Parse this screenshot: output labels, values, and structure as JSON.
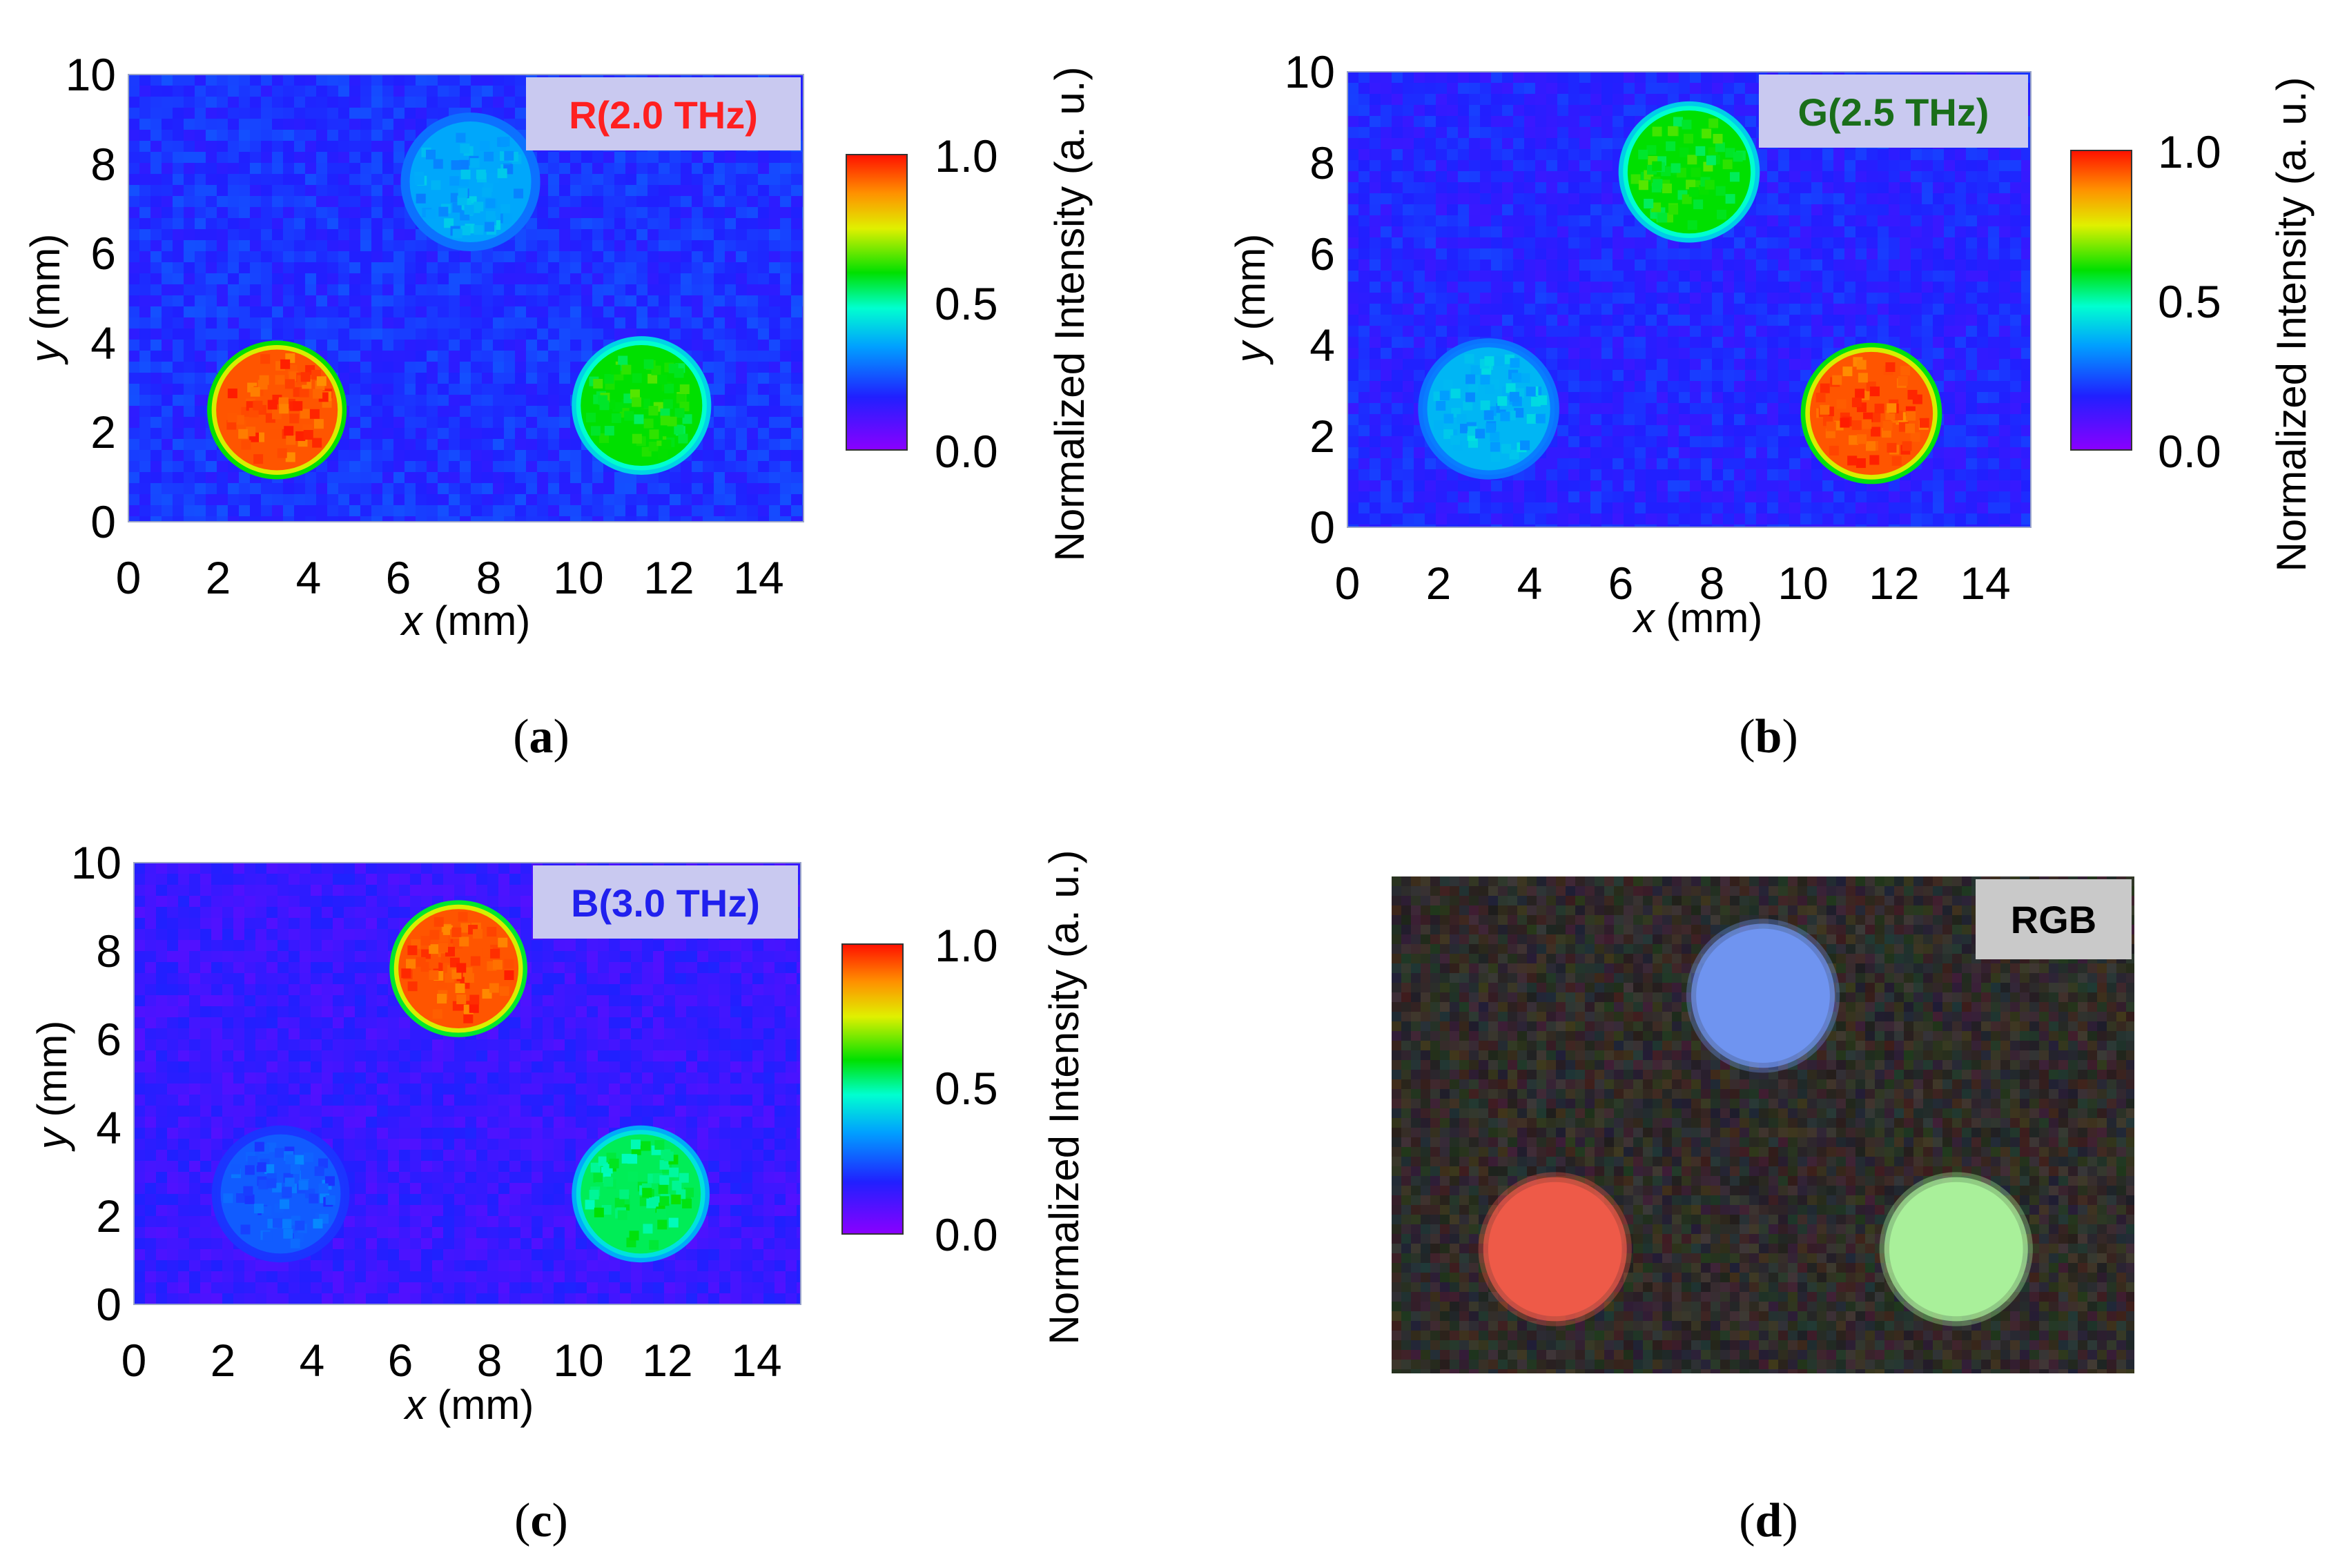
{
  "chart_data": [
    {
      "id": "a",
      "type": "heatmap",
      "tag": "R(2.0 THz)",
      "tag_color": "#ff2020",
      "caption": {
        "open": "(",
        "letter": "a",
        "close": ")"
      },
      "xlabel": {
        "var": "x",
        "unit": " (mm)"
      },
      "ylabel": {
        "var": "y",
        "unit": " (mm)"
      },
      "xlim": [
        0,
        15
      ],
      "ylim": [
        0,
        10
      ],
      "xticks": [
        "0",
        "2",
        "4",
        "6",
        "8",
        "10",
        "12",
        "14"
      ],
      "yticks": [
        "0",
        "2",
        "4",
        "6",
        "8",
        "10"
      ],
      "background_level": 0.2,
      "spots": [
        {
          "x": 3.3,
          "y": 2.5,
          "intensity": 0.93
        },
        {
          "x": 11.4,
          "y": 2.6,
          "intensity": 0.6
        },
        {
          "x": 7.6,
          "y": 7.6,
          "intensity": 0.36
        }
      ],
      "colorbar": {
        "title": "Normalized Intensity (a. u.)",
        "ticks": [
          "1.0",
          "0.5",
          "0.0"
        ],
        "range": [
          0,
          1
        ]
      }
    },
    {
      "id": "b",
      "type": "heatmap",
      "tag": "G(2.5 THz)",
      "tag_color": "#1a6e1a",
      "caption": {
        "open": "(",
        "letter": "b",
        "close": ")"
      },
      "xlabel": {
        "var": "x",
        "unit": " (mm)"
      },
      "ylabel": {
        "var": "y",
        "unit": " (mm)"
      },
      "xlim": [
        0,
        15
      ],
      "ylim": [
        0,
        10
      ],
      "xticks": [
        "0",
        "2",
        "4",
        "6",
        "8",
        "10",
        "12",
        "14"
      ],
      "yticks": [
        "0",
        "2",
        "4",
        "6",
        "8",
        "10"
      ],
      "background_level": 0.18,
      "spots": [
        {
          "x": 3.1,
          "y": 2.6,
          "intensity": 0.38
        },
        {
          "x": 11.5,
          "y": 2.5,
          "intensity": 0.93
        },
        {
          "x": 7.5,
          "y": 7.8,
          "intensity": 0.6
        }
      ],
      "colorbar": {
        "title": "Normalized Intensity (a. u.)",
        "ticks": [
          "1.0",
          "0.5",
          "0.0"
        ],
        "range": [
          0,
          1
        ]
      }
    },
    {
      "id": "c",
      "type": "heatmap",
      "tag": "B(3.0 THz)",
      "tag_color": "#2020ee",
      "caption": {
        "open": "(",
        "letter": "c",
        "close": ")"
      },
      "xlabel": {
        "var": "x",
        "unit": " (mm)"
      },
      "ylabel": {
        "var": "y",
        "unit": " (mm)"
      },
      "xlim": [
        0,
        15
      ],
      "ylim": [
        0,
        10
      ],
      "xticks": [
        "0",
        "2",
        "4",
        "6",
        "8",
        "10",
        "12",
        "14"
      ],
      "yticks": [
        "0",
        "2",
        "4",
        "6",
        "8",
        "10"
      ],
      "background_level": 0.14,
      "spots": [
        {
          "x": 3.3,
          "y": 2.5,
          "intensity": 0.26
        },
        {
          "x": 11.4,
          "y": 2.5,
          "intensity": 0.55
        },
        {
          "x": 7.3,
          "y": 7.6,
          "intensity": 0.93
        }
      ],
      "colorbar": {
        "title": "Normalized Intensity (a. u.)",
        "ticks": [
          "1.0",
          "0.5",
          "0.0"
        ],
        "range": [
          0,
          1
        ]
      }
    },
    {
      "id": "d",
      "type": "image",
      "tag": "RGB",
      "caption": {
        "open": "(",
        "letter": "d",
        "close": ")"
      },
      "spots": [
        {
          "x": 3.3,
          "y": 2.5,
          "color": "#ee5a48"
        },
        {
          "x": 11.4,
          "y": 2.5,
          "color": "#a9f09a"
        },
        {
          "x": 7.5,
          "y": 7.6,
          "color": "#6f94f0"
        }
      ]
    }
  ]
}
